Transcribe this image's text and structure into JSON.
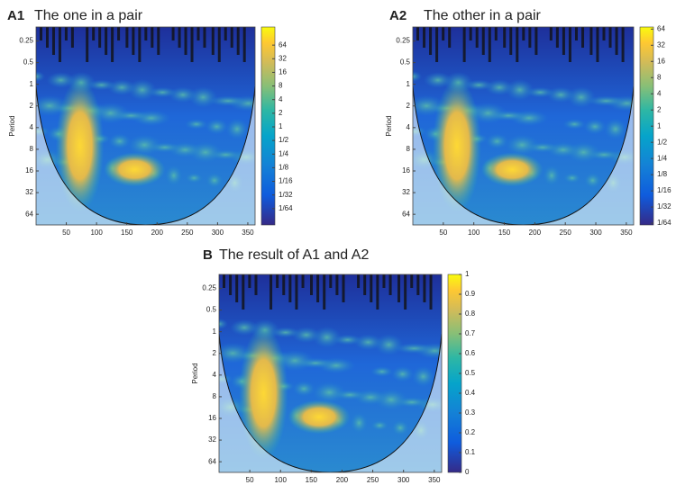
{
  "chart_data": [
    {
      "type": "heatmap",
      "panel": "A1",
      "title": "The one in a pair",
      "ylabel": "Period",
      "xlim": [
        0,
        362
      ],
      "xticks": [
        50,
        100,
        150,
        200,
        250,
        300,
        350
      ],
      "ylim": [
        0.16,
        90
      ],
      "yticks": [
        0.25,
        0.5,
        1,
        2,
        4,
        8,
        16,
        32,
        64
      ],
      "log_scale": true,
      "clim": [
        0.0068,
        161
      ],
      "colorbar_log": true,
      "cticks": [
        {
          "value": 0.015625,
          "label": "1/64"
        },
        {
          "value": 0.03125,
          "label": "1/32"
        },
        {
          "value": 0.0625,
          "label": "1/16"
        },
        {
          "value": 0.125,
          "label": "1/8"
        },
        {
          "value": 0.25,
          "label": "1/4"
        },
        {
          "value": 0.5,
          "label": "1/2"
        },
        1,
        2,
        4,
        8,
        16,
        32,
        64
      ]
    },
    {
      "type": "heatmap",
      "panel": "A2",
      "title": "The other in a pair",
      "ylabel": "Period",
      "xlim": [
        0,
        362
      ],
      "xticks": [
        50,
        100,
        150,
        200,
        250,
        300,
        350
      ],
      "ylim": [
        0.16,
        90
      ],
      "yticks": [
        0.25,
        0.5,
        1,
        2,
        4,
        8,
        16,
        32,
        64
      ],
      "log_scale": true,
      "clim": [
        0.0145,
        70
      ],
      "colorbar_log": true,
      "cticks": [
        {
          "value": 0.015625,
          "label": "1/64"
        },
        {
          "value": 0.03125,
          "label": "1/32"
        },
        {
          "value": 0.0625,
          "label": "1/16"
        },
        {
          "value": 0.125,
          "label": "1/8"
        },
        {
          "value": 0.25,
          "label": "1/4"
        },
        {
          "value": 0.5,
          "label": "1/2"
        },
        1,
        2,
        4,
        8,
        16,
        32,
        64
      ]
    },
    {
      "type": "heatmap",
      "panel": "B",
      "title": "The result of A1 and A2",
      "ylabel": "Period",
      "xlim": [
        0,
        362
      ],
      "xticks": [
        50,
        100,
        150,
        200,
        250,
        300,
        350
      ],
      "ylim": [
        0.16,
        90
      ],
      "yticks": [
        0.25,
        0.5,
        1,
        2,
        4,
        8,
        16,
        32,
        64
      ],
      "log_scale": true,
      "clim": [
        0,
        1
      ],
      "colorbar_log": false,
      "cticks": [
        0,
        0.1,
        0.2,
        0.3,
        0.4,
        0.5,
        0.6,
        0.7,
        0.8,
        0.9,
        1
      ]
    }
  ]
}
